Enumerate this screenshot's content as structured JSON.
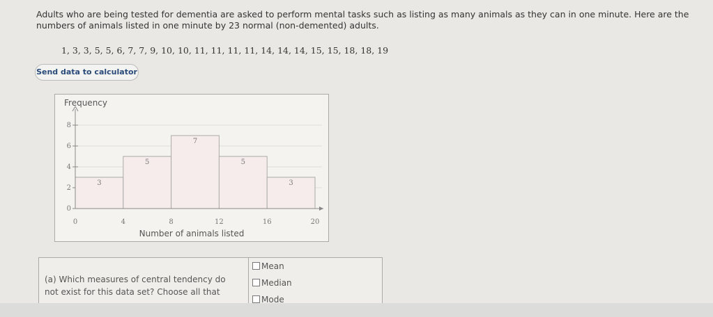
{
  "intro": "Adults who are being tested for dementia are asked to perform mental tasks such as listing as many animals as they can in one minute. Here are the numbers of animals listed in one minute by 23 normal (non-demented) adults.",
  "data_list": "1, 3, 3, 5, 5, 6, 7, 7, 9, 10, 10, 11, 11, 11, 11, 14, 14, 14, 15, 15, 18, 18, 19",
  "button": "Send data to calculator",
  "chart_data": {
    "type": "histogram",
    "y_label": "Frequency",
    "x_label": "Number of animals listed",
    "bins": [
      0,
      4,
      8,
      12,
      16,
      20
    ],
    "values": [
      3,
      5,
      7,
      5,
      3
    ],
    "color": "#f7ecec",
    "xlim": [
      0,
      20
    ],
    "ylim": [
      0,
      9
    ],
    "xticks": [
      0,
      4,
      8,
      12,
      16,
      20
    ],
    "yticks": [
      0,
      2,
      4,
      6,
      8
    ],
    "grid": true
  },
  "question": {
    "text": "(a) Which measures of central tendency do not exist for this data set? Choose all that",
    "options": [
      "Mean",
      "Median",
      "Mode"
    ]
  }
}
